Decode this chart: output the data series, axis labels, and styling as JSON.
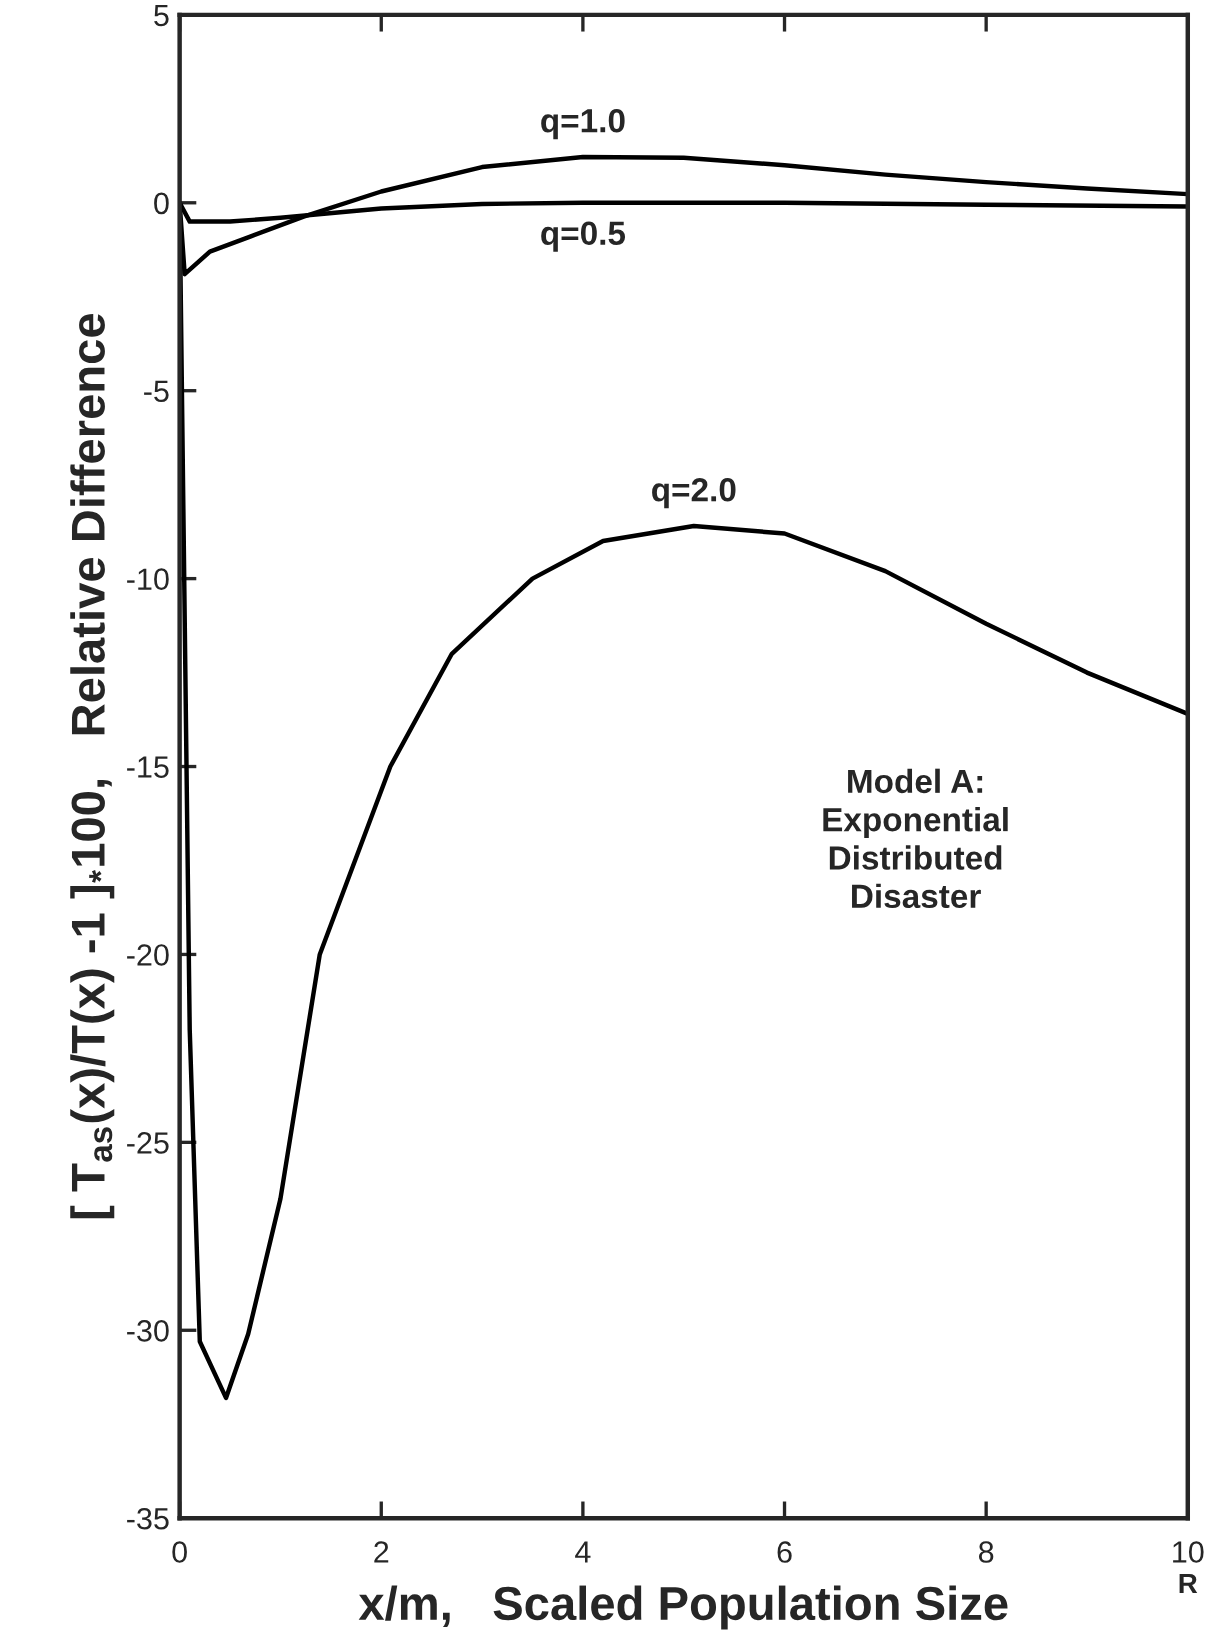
{
  "chart_data": {
    "type": "line",
    "xlabel": "x/m,   Scaled Population Size",
    "ylabel": "[ T$_{as}$(x)/T(x) -1 ]$_{*}$100,   Relative Difference",
    "xlim": [
      0,
      10
    ],
    "ylim": [
      -35,
      5
    ],
    "xticks": [
      0,
      2,
      4,
      6,
      8,
      10
    ],
    "yticks": [
      -35,
      -30,
      -25,
      -20,
      -15,
      -10,
      -5,
      0,
      5
    ],
    "grid": false,
    "legend": false,
    "marker": "none",
    "line_style": "solid",
    "series": [
      {
        "name": "q=1.0",
        "color": "#000000",
        "x": [
          0,
          0.05,
          0.3,
          0.7,
          1.23,
          2,
          3,
          4,
          5,
          6,
          7,
          8,
          9,
          10
        ],
        "values": [
          0,
          -1.9,
          -1.3,
          -0.9,
          -0.37,
          0.3,
          0.95,
          1.22,
          1.2,
          1.0,
          0.75,
          0.55,
          0.38,
          0.23
        ]
      },
      {
        "name": "q=0.5",
        "color": "#000000",
        "x": [
          0,
          0.1,
          0.5,
          1,
          2,
          3,
          4,
          6,
          8,
          10
        ],
        "values": [
          0,
          -0.5,
          -0.5,
          -0.4,
          -0.15,
          -0.03,
          0,
          0,
          -0.05,
          -0.1
        ]
      },
      {
        "name": "q=2.0",
        "color": "#000000",
        "x": [
          0,
          0.1,
          0.2,
          0.46,
          0.68,
          1.0,
          1.39,
          2.09,
          2.7,
          3.5,
          4.2,
          5.1,
          6,
          7,
          8,
          9,
          10
        ],
        "values": [
          0,
          -22,
          -30.3,
          -31.8,
          -30.1,
          -26.5,
          -20,
          -15,
          -12,
          -10,
          -9,
          -8.6,
          -8.8,
          -9.8,
          -11.2,
          -12.5,
          -13.6
        ]
      }
    ],
    "annotations": [
      "Model A:\nExponential\nDistributed\nDisaster",
      "R"
    ]
  }
}
